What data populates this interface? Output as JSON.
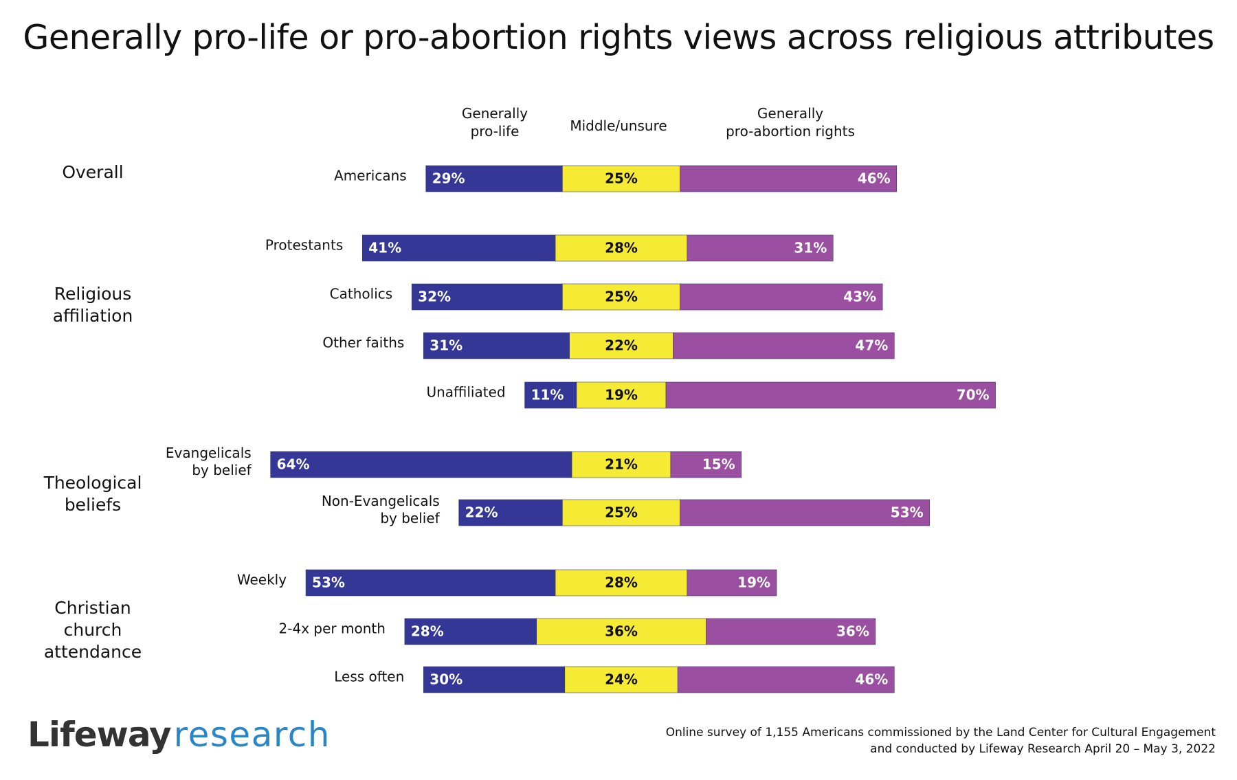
{
  "title": "Generally pro-life or pro-abortion rights views across religious attributes",
  "footnote": {
    "line1": "Online survey of 1,155 Americans commissioned by the Land Center for Cultural Engagement",
    "line2": "and conducted by Lifeway Research April 20 – May 3, 2022"
  },
  "brand": {
    "part1": "Lifeway",
    "part2": "research"
  },
  "colors": {
    "pro_life": "#343795",
    "middle": "#f5ea34",
    "pro_choice": "#9a4fa1"
  },
  "column_headers": {
    "pro_life": [
      "Generally",
      "pro-life"
    ],
    "middle": [
      "Middle/unsure"
    ],
    "pro_choice": [
      "Generally",
      "pro-abortion rights"
    ]
  },
  "chart_data": {
    "type": "bar",
    "orientation": "horizontal",
    "stacked": true,
    "alignment": "diverging",
    "value_suffix": "%",
    "groups": [
      {
        "label": [
          "Overall"
        ],
        "categories": [
          "Americans"
        ]
      },
      {
        "label": [
          "Religious",
          "affiliation"
        ],
        "categories": [
          "Protestants",
          "Catholics",
          "Other faiths",
          "Unaffiliated"
        ]
      },
      {
        "label": [
          "Theological",
          "beliefs"
        ],
        "categories": [
          "Evangelicals by belief",
          "Non-Evangelicals by belief"
        ]
      },
      {
        "label": [
          "Christian",
          "church",
          "attendance"
        ],
        "categories": [
          "Weekly",
          "2-4x per month",
          "Less often"
        ]
      }
    ],
    "rows": [
      {
        "label": [
          "Americans"
        ],
        "values": [
          29,
          25,
          46
        ]
      },
      {
        "label": [
          "Protestants"
        ],
        "values": [
          41,
          28,
          31
        ]
      },
      {
        "label": [
          "Catholics"
        ],
        "values": [
          32,
          25,
          43
        ]
      },
      {
        "label": [
          "Other faiths"
        ],
        "values": [
          31,
          22,
          47
        ]
      },
      {
        "label": [
          "Unaffiliated"
        ],
        "values": [
          11,
          19,
          70
        ]
      },
      {
        "label": [
          "Evangelicals",
          "by belief"
        ],
        "values": [
          64,
          21,
          15
        ]
      },
      {
        "label": [
          "Non-Evangelicals",
          "by belief"
        ],
        "values": [
          22,
          25,
          53
        ]
      },
      {
        "label": [
          "Weekly"
        ],
        "values": [
          53,
          28,
          19
        ]
      },
      {
        "label": [
          "2-4x per month"
        ],
        "values": [
          28,
          36,
          36
        ]
      },
      {
        "label": [
          "Less often"
        ],
        "values": [
          30,
          24,
          46
        ]
      }
    ],
    "series": [
      {
        "name": "Generally pro-life"
      },
      {
        "name": "Middle/unsure"
      },
      {
        "name": "Generally pro-abortion rights"
      }
    ]
  }
}
